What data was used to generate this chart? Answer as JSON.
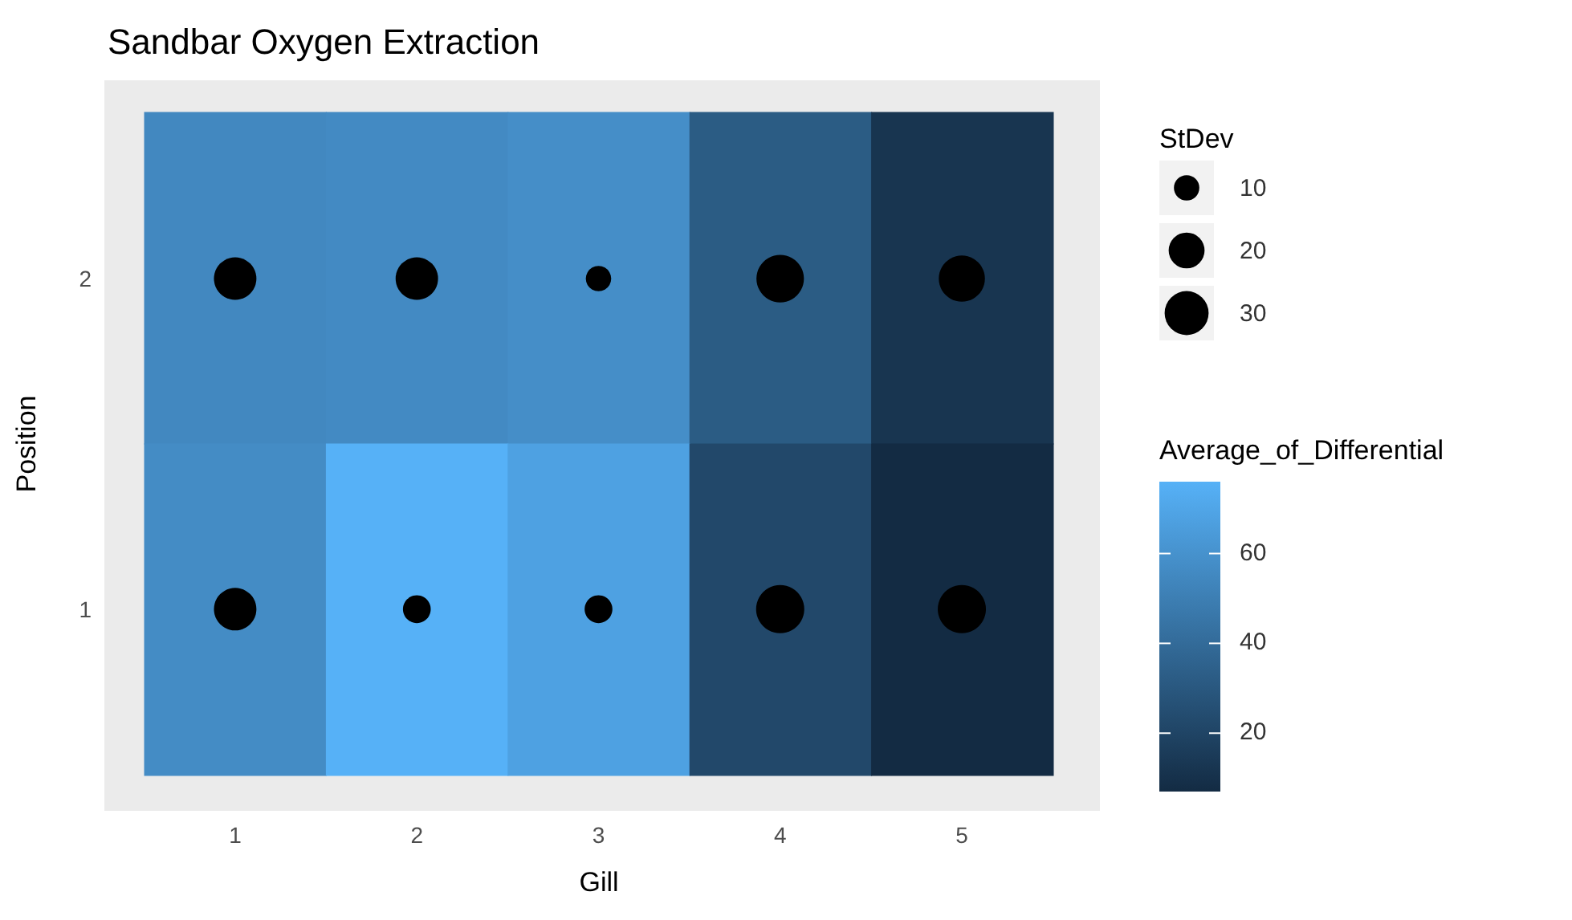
{
  "chart_data": [
    {
      "type": "heatmap",
      "title": "Sandbar Oxygen Extraction",
      "xlabel": "Gill",
      "ylabel": "Position",
      "categories": [
        "1",
        "2",
        "3",
        "4",
        "5"
      ],
      "y_categories": [
        "2",
        "1"
      ],
      "cells": [
        [
          55,
          56,
          58,
          32,
          12
        ],
        [
          57,
          76,
          68,
          22,
          7
        ]
      ],
      "clabel": "Average_of_Differential",
      "clim": [
        7,
        76
      ],
      "cticks": [
        20,
        40,
        60
      ],
      "tick_labels": false
    },
    {
      "type": "bubble",
      "color": "#000000",
      "x": [
        1,
        2,
        3,
        4,
        5,
        1,
        2,
        3,
        4,
        5
      ],
      "values": [
        2,
        2,
        2,
        2,
        2,
        1,
        1,
        1,
        1,
        1
      ],
      "sizes": [
        28,
        28,
        10,
        35,
        33,
        28,
        12,
        12,
        36,
        36
      ],
      "xlim": [
        0.28,
        5.76
      ],
      "ylim": [
        0.39,
        2.6
      ],
      "xticks": [
        1,
        2,
        3,
        4,
        5
      ],
      "yticks": [
        1,
        2
      ],
      "legend_title": "StDev",
      "size_legend": [
        10,
        20,
        30
      ]
    }
  ]
}
